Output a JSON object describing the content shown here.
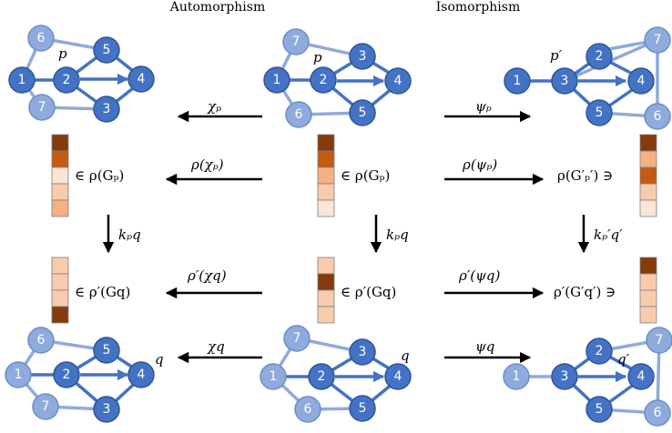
{
  "headers": {
    "automorphism": "Automorphism",
    "isomorphism": "Isomorphism"
  },
  "labels": {
    "p_left": "p",
    "p_center": "p",
    "p_right": "p′",
    "q_left": "q",
    "q_center": "q",
    "q_right": "q′",
    "chi_p": "χₚ",
    "psi_p": "ψₚ",
    "rho_chi_p": "ρ(χₚ)",
    "rho_psi_p": "ρ(ψₚ)",
    "in_rho_Gp_left": "∈ ρ(Gₚ)",
    "in_rho_Gp_center": "∈ ρ(Gₚ)",
    "rho_Gpprime_ni": "ρ(G′ₚ′) ∋",
    "k_pq_left": "kₚq",
    "k_pq_center": "kₚq",
    "k_pq_right": "kₚ′q′",
    "rhoprime_chi_q": "ρ′(χq)",
    "rhoprime_psi_q": "ρ′(ψq)",
    "in_rhoprime_Gq_left": "∈ ρ′(Gq)",
    "in_rhoprime_Gq_center": "∈ ρ′(Gq)",
    "rhoprime_Gqprime_ni": "ρ′(G′q′) ∋",
    "chi_q": "χq",
    "psi_q": "ψq"
  },
  "graphs": {
    "top_left": {
      "nodes": [
        "6",
        "1",
        "2",
        "5",
        "4",
        "7",
        "3"
      ]
    },
    "top_center": {
      "nodes": [
        "7",
        "1",
        "2",
        "3",
        "4",
        "6",
        "5"
      ]
    },
    "top_right": {
      "nodes": [
        "7",
        "1",
        "3",
        "2",
        "4",
        "5",
        "6"
      ]
    },
    "bottom_left": {
      "nodes": [
        "6",
        "1",
        "2",
        "5",
        "4",
        "7",
        "3"
      ]
    },
    "bottom_center": {
      "nodes": [
        "7",
        "1",
        "2",
        "3",
        "4",
        "6",
        "5"
      ]
    },
    "bottom_right": {
      "nodes": [
        "7",
        "1",
        "3",
        "2",
        "4",
        "5",
        "6"
      ]
    }
  },
  "colors": {
    "node_dark": "#4472C4",
    "node_light": "#8FAADC",
    "dark_brown": "#843C0C",
    "orange": "#C55A11",
    "light_orange": "#F4B183",
    "pale_orange": "#F8CBAD",
    "very_pale": "#FBE5D6"
  }
}
